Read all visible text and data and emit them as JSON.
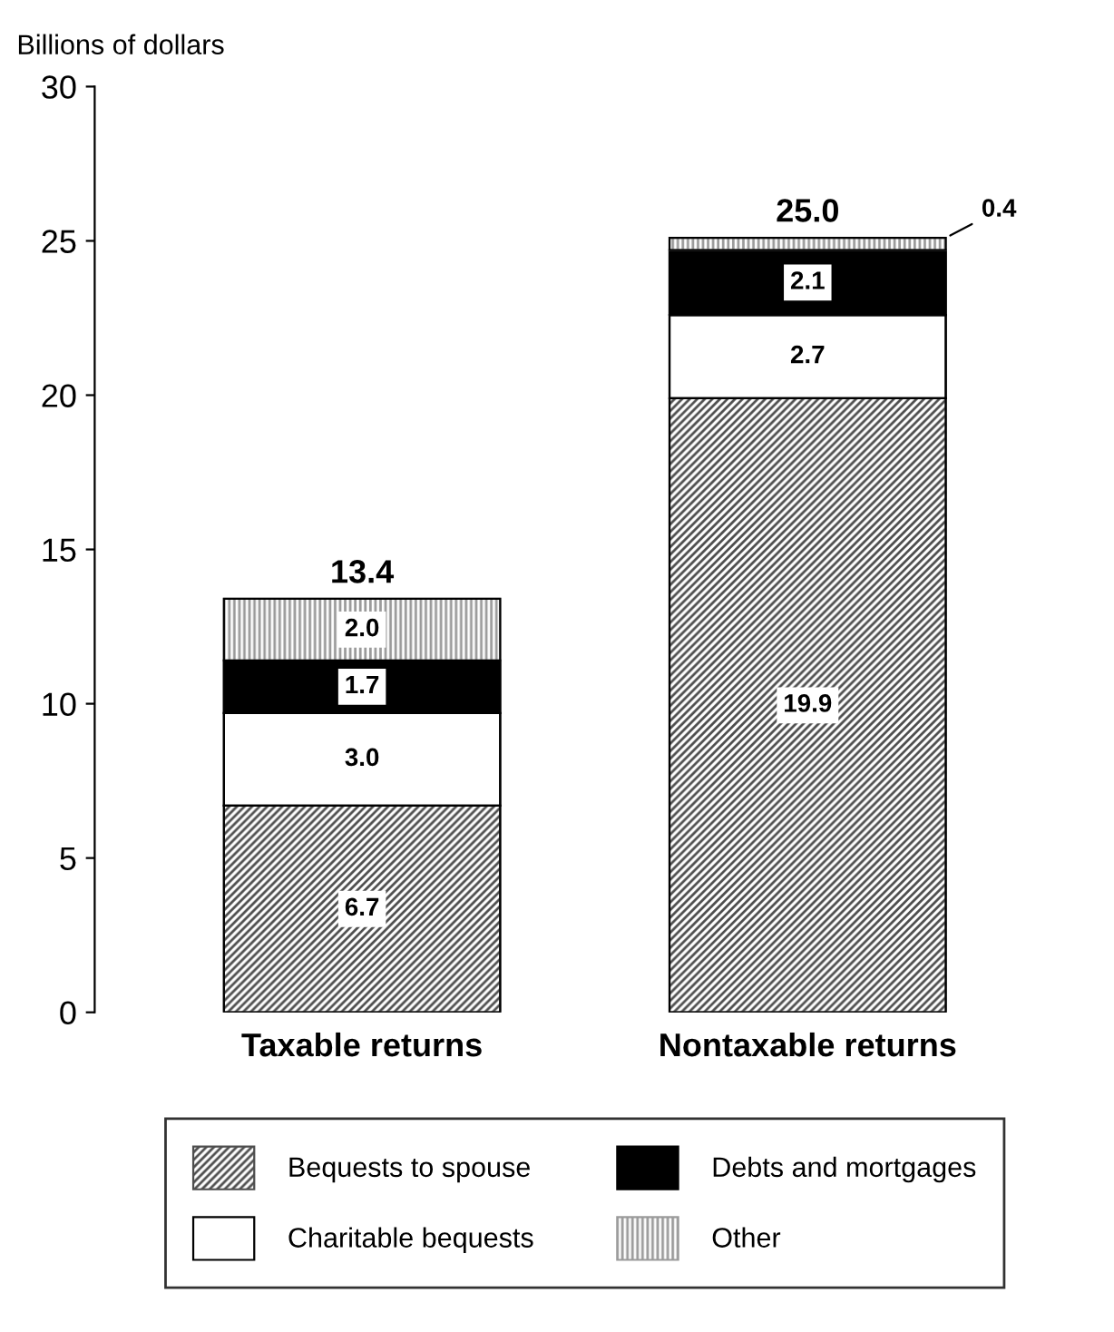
{
  "chart_data": {
    "type": "bar",
    "stacked": true,
    "ylabel": "Billions of dollars",
    "categories": [
      "Taxable returns",
      "Nontaxable returns"
    ],
    "series": [
      {
        "name": "Bequests to spouse",
        "color": "#4d4d4d",
        "values": [
          6.7,
          19.9
        ],
        "value_labels": [
          "6.7",
          "19.9"
        ]
      },
      {
        "name": "Charitable bequests",
        "color": "#ffffff",
        "values": [
          3.0,
          2.7
        ],
        "value_labels": [
          "3.0",
          "2.7"
        ]
      },
      {
        "name": "Debts and mortgages",
        "color": "#000000",
        "values": [
          1.7,
          2.1
        ],
        "value_labels": [
          "1.7",
          "2.1"
        ]
      },
      {
        "name": "Other",
        "color": "#9a9a9a",
        "values": [
          2.0,
          0.4
        ],
        "value_labels": [
          "2.0",
          "0.4"
        ]
      }
    ],
    "totals": [
      "13.4",
      "25.0"
    ],
    "ylim": [
      0,
      30
    ],
    "yticks": [
      0,
      5,
      10,
      15,
      20,
      25,
      30
    ],
    "grid": false,
    "legend": "bottom"
  }
}
